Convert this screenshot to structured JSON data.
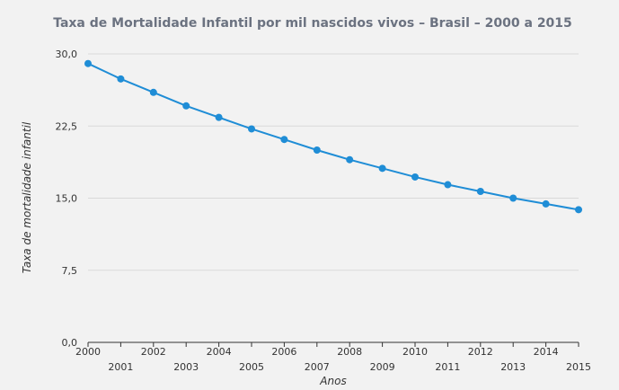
{
  "chart_data": {
    "type": "line",
    "title": "Taxa de Mortalidade Infantil por mil nascidos vivos – Brasil – 2000 a 2015",
    "xlabel": "Anos",
    "ylabel": "Taxa de mortalidade infantil",
    "categories": [
      "2000",
      "2001",
      "2002",
      "2003",
      "2004",
      "2005",
      "2006",
      "2007",
      "2008",
      "2009",
      "2010",
      "2011",
      "2012",
      "2013",
      "2014",
      "2015"
    ],
    "series": [
      {
        "values": [
          29.0,
          27.4,
          26.0,
          24.6,
          23.4,
          22.2,
          21.1,
          20.0,
          19.0,
          18.1,
          17.2,
          16.4,
          15.7,
          15.0,
          14.4,
          13.8
        ]
      }
    ],
    "ylim": [
      0,
      30
    ],
    "yticks": [
      "0,0",
      "7,5",
      "15,0",
      "22,5",
      "30,0"
    ],
    "ytick_values": [
      0,
      7.5,
      15,
      22.5,
      30
    ],
    "grid": true,
    "legend": "none",
    "colors": {
      "line": "#1f8dd6",
      "background": "#f2f2f2"
    }
  }
}
